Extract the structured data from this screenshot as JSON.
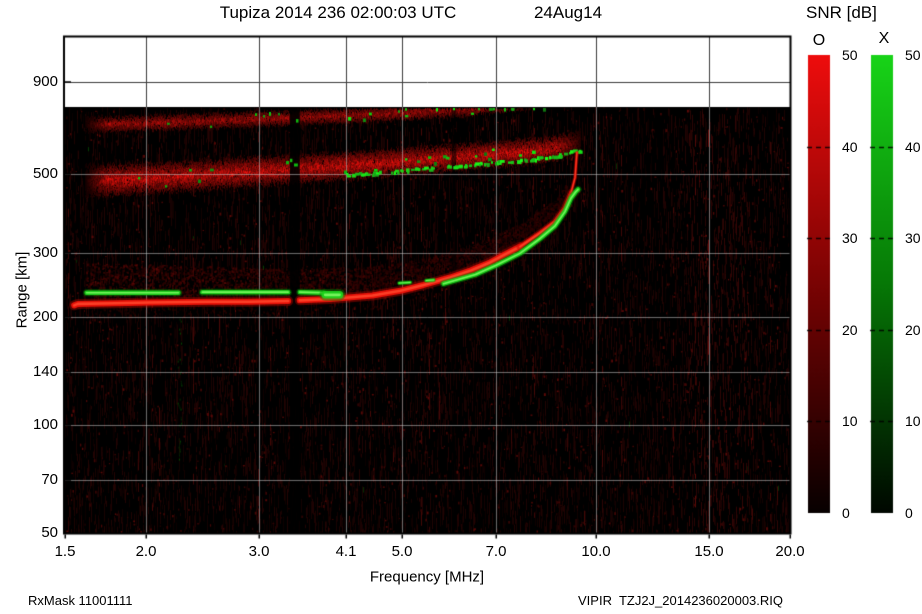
{
  "header": {
    "title": "Tupiza 2014 236 02:00:03 UTC",
    "date": "24Aug14"
  },
  "footer": {
    "rx_mask": "RxMask 11001111",
    "instrument_file": "VIPIR  TZJ2J_2014236020003.RIQ"
  },
  "colorbar_panel": {
    "title": "SNR [dB]",
    "o_label": "O",
    "x_label": "X",
    "min": 0,
    "max": 50,
    "ticks": [
      0,
      10,
      20,
      30,
      40,
      50
    ],
    "tick_labels": [
      "0",
      "10",
      "20",
      "30",
      "40",
      "50"
    ],
    "o_color_max": "#ee0d0d",
    "x_color_max": "#18d418"
  },
  "chart_data": {
    "type": "heatmap",
    "title": "Tupiza 2014 236 02:00:03 UTC",
    "xlabel": "Frequency [MHz]",
    "ylabel": "Range [km]",
    "x_scale": "log",
    "y_scale": "log",
    "xlim": [
      1.5,
      20.0
    ],
    "ylim": [
      50,
      1200
    ],
    "x_ticks": [
      1.5,
      2.0,
      3.0,
      4.1,
      5.0,
      7.0,
      10.0,
      15.0,
      20.0
    ],
    "x_tick_labels": [
      "1.5",
      "2.0",
      "3.0",
      "4.1",
      "5.0",
      "7.0",
      "10.0",
      "15.0",
      "20.0"
    ],
    "y_ticks": [
      50,
      70,
      100,
      140,
      200,
      300,
      500,
      900
    ],
    "y_tick_labels": [
      "50",
      "70",
      "100",
      "140",
      "200",
      "300",
      "500",
      "900"
    ],
    "x_gridlines": [
      2.0,
      3.0,
      4.1,
      5.0,
      7.0,
      10.0,
      15.0
    ],
    "y_gridlines": [
      70,
      100,
      140,
      200,
      300,
      500,
      900
    ],
    "grid_on": true,
    "snr_min_db": 0,
    "snr_max_db": 50,
    "o_mode_color": "red",
    "x_mode_color": "green",
    "max_data_range_km": 765,
    "fof2_mhz": 9.34,
    "fxf2_mhz": 9.43,
    "fmin_mhz": 1.55,
    "o_trace_points": [
      [
        1.55,
        215
      ],
      [
        1.57,
        217
      ],
      [
        1.8,
        218
      ],
      [
        2.03,
        219
      ],
      [
        2.5,
        220
      ],
      [
        2.9,
        220
      ],
      [
        3.33,
        221
      ],
      [
        3.47,
        222
      ],
      [
        3.87,
        224
      ],
      [
        4.5,
        229
      ],
      [
        4.97,
        236
      ],
      [
        5.4,
        245
      ],
      [
        5.94,
        257
      ],
      [
        6.4,
        269
      ],
      [
        6.85,
        283
      ],
      [
        7.2,
        297
      ],
      [
        7.62,
        313
      ],
      [
        8.19,
        342
      ],
      [
        8.64,
        368
      ],
      [
        8.95,
        402
      ],
      [
        9.15,
        443
      ],
      [
        9.28,
        488
      ],
      [
        9.34,
        572
      ]
    ],
    "x_trace_segments": [
      {
        "points": [
          [
            1.62,
            233
          ],
          [
            2.25,
            233
          ]
        ],
        "width": "normal"
      },
      {
        "points": [
          [
            2.45,
            234
          ],
          [
            3.33,
            234
          ]
        ],
        "width": "normal"
      },
      {
        "points": [
          [
            3.47,
            234
          ],
          [
            3.78,
            233
          ]
        ],
        "width": "normal"
      },
      {
        "points": [
          [
            3.8,
            230
          ],
          [
            4.0,
            230
          ]
        ],
        "width": "thick"
      },
      {
        "points": [
          [
            4.95,
            248
          ],
          [
            5.15,
            249
          ]
        ],
        "width": "thin"
      },
      {
        "points": [
          [
            5.45,
            252
          ],
          [
            5.6,
            253
          ]
        ],
        "width": "thin"
      },
      {
        "points": [
          [
            5.8,
            247
          ],
          [
            6.5,
            262
          ],
          [
            7.0,
            278
          ],
          [
            7.62,
            300
          ],
          [
            8.19,
            330
          ],
          [
            8.64,
            358
          ],
          [
            8.95,
            392
          ],
          [
            9.15,
            428
          ],
          [
            9.3,
            445
          ],
          [
            9.38,
            452
          ]
        ],
        "width": "normal"
      }
    ],
    "spread_bands": [
      {
        "name": "upper",
        "f_from": 1.61,
        "f_to": 8.3,
        "half_width_km": 33,
        "intensity": 1.0,
        "green_speckle_rate": 0.045,
        "center_range_km": [
          [
            1.61,
            690
          ],
          [
            3.0,
            715
          ],
          [
            5.0,
            742
          ],
          [
            6.5,
            765
          ],
          [
            8.3,
            805
          ]
        ]
      },
      {
        "name": "lower",
        "f_from": 1.61,
        "f_to": 9.45,
        "half_width_km": 44,
        "intensity": 1.3,
        "green_speckle_rate": 0.06,
        "center_range_km": [
          [
            1.61,
            482
          ],
          [
            3.0,
            512
          ],
          [
            5.0,
            546
          ],
          [
            7.0,
            572
          ],
          [
            8.5,
            590
          ],
          [
            9.45,
            618
          ]
        ]
      }
    ],
    "diffuse_above_o_trace": {
      "f_from": 1.62,
      "f_to": 9.0,
      "offset_km_min": 8,
      "offset_km_max": 55
    },
    "masked_frequency_gaps": [
      {
        "f_from": 3.35,
        "f_to": 3.47,
        "opacity": 0.9
      },
      {
        "f_from": 5.97,
        "f_to": 6.07,
        "opacity": 0.55
      }
    ],
    "noise": {
      "seed": 20140824,
      "green_streaks": [
        {
          "f": 2.25,
          "r_from": 80,
          "r_to": 200
        }
      ],
      "boosted_red_column_f": [
        8.0,
        8.6
      ]
    }
  }
}
